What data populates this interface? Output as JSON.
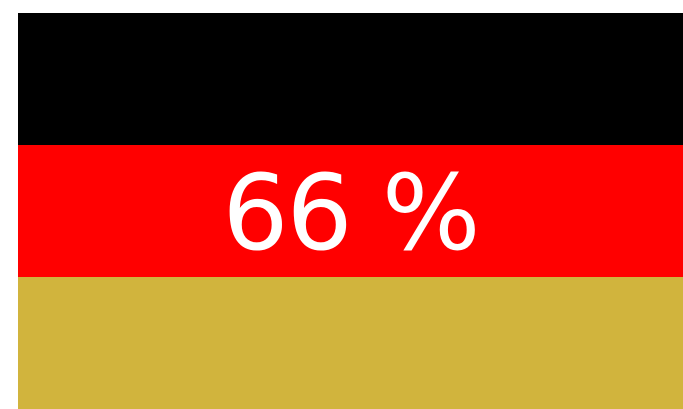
{
  "flag": {
    "colors": {
      "top": "#000000",
      "middle": "#ff0000",
      "bottom": "#d1b43d"
    }
  },
  "overlay": {
    "text": "66 %",
    "color": "#ffffff"
  }
}
